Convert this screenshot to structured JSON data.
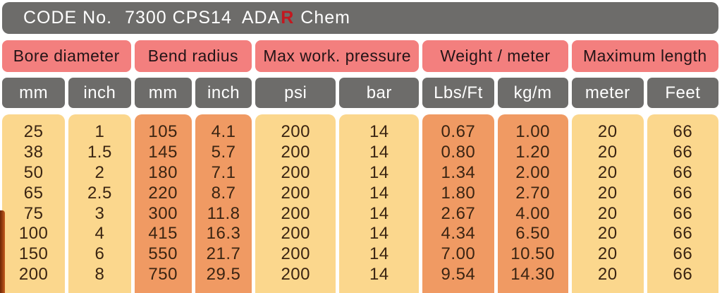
{
  "header": {
    "code_label": "CODE No.",
    "code_value": "7300 CPS14",
    "brand_prefix": "ADA",
    "brand_mark": "R",
    "brand_suffix": "Chem"
  },
  "columns": {
    "groups": [
      {
        "label": "Bore diameter",
        "units": [
          "mm",
          "inch"
        ]
      },
      {
        "label": "Bend radius",
        "units": [
          "mm",
          "inch"
        ]
      },
      {
        "label": "Max work. pressure",
        "units": [
          "psi",
          "bar"
        ]
      },
      {
        "label": "Weight / meter",
        "units": [
          "Lbs/Ft",
          "kg/m"
        ]
      },
      {
        "label": "Maximum length",
        "units": [
          "meter",
          "Feet"
        ]
      }
    ],
    "column_keys": [
      "bore-mm",
      "bore-inch",
      "bend-mm",
      "bend-inch",
      "pressure-psi",
      "pressure-bar",
      "weight-lbsft",
      "weight-kgm",
      "length-meter",
      "length-feet"
    ]
  },
  "rows": [
    [
      "25",
      "1",
      "105",
      "4.1",
      "200",
      "14",
      "0.67",
      "1.00",
      "20",
      "66"
    ],
    [
      "38",
      "1.5",
      "145",
      "5.7",
      "200",
      "14",
      "0.80",
      "1.20",
      "20",
      "66"
    ],
    [
      "50",
      "2",
      "180",
      "7.1",
      "200",
      "14",
      "1.34",
      "2.00",
      "20",
      "66"
    ],
    [
      "65",
      "2.5",
      "220",
      "8.7",
      "200",
      "14",
      "1.80",
      "2.70",
      "20",
      "66"
    ],
    [
      "75",
      "3",
      "300",
      "11.8",
      "200",
      "14",
      "2.67",
      "4.00",
      "20",
      "66"
    ],
    [
      "100",
      "4",
      "415",
      "16.3",
      "200",
      "14",
      "4.34",
      "6.50",
      "20",
      "66"
    ],
    [
      "150",
      "6",
      "550",
      "21.7",
      "200",
      "14",
      "7.00",
      "10.50",
      "20",
      "66"
    ],
    [
      "200",
      "8",
      "750",
      "29.5",
      "200",
      "14",
      "9.54",
      "14.30",
      "20",
      "66"
    ]
  ],
  "colors": {
    "bar_gray": "#6d6c6a",
    "group_pink": "#f37f7e",
    "body_yellow": "#fbd78d",
    "body_orange": "#f09a63",
    "brand_red": "#c4171e",
    "data_text": "#3a2412",
    "header_text_dark": "#231417",
    "header_text_light": "#ffffff"
  }
}
